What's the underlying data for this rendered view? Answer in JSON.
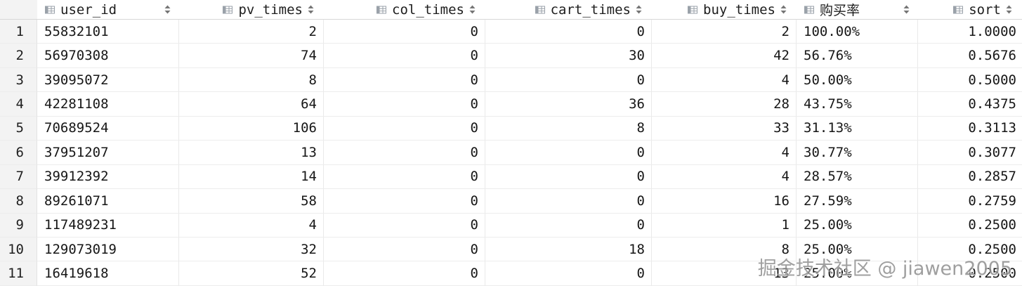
{
  "header": {
    "columns": [
      {
        "label": "user_id"
      },
      {
        "label": "pv_times"
      },
      {
        "label": "col_times"
      },
      {
        "label": "cart_times"
      },
      {
        "label": "buy_times"
      },
      {
        "label": "购买率"
      },
      {
        "label": "sort"
      }
    ]
  },
  "rows": [
    {
      "num": "1",
      "cells": [
        "55832101",
        "2",
        "0",
        "0",
        "2",
        "100.00%",
        "1.0000"
      ]
    },
    {
      "num": "2",
      "cells": [
        "56970308",
        "74",
        "0",
        "30",
        "42",
        "56.76%",
        "0.5676"
      ]
    },
    {
      "num": "3",
      "cells": [
        "39095072",
        "8",
        "0",
        "0",
        "4",
        "50.00%",
        "0.5000"
      ]
    },
    {
      "num": "4",
      "cells": [
        "42281108",
        "64",
        "0",
        "36",
        "28",
        "43.75%",
        "0.4375"
      ]
    },
    {
      "num": "5",
      "cells": [
        "70689524",
        "106",
        "0",
        "8",
        "33",
        "31.13%",
        "0.3113"
      ]
    },
    {
      "num": "6",
      "cells": [
        "37951207",
        "13",
        "0",
        "0",
        "4",
        "30.77%",
        "0.3077"
      ]
    },
    {
      "num": "7",
      "cells": [
        "39912392",
        "14",
        "0",
        "0",
        "4",
        "28.57%",
        "0.2857"
      ]
    },
    {
      "num": "8",
      "cells": [
        "89261071",
        "58",
        "0",
        "0",
        "16",
        "27.59%",
        "0.2759"
      ]
    },
    {
      "num": "9",
      "cells": [
        "117489231",
        "4",
        "0",
        "0",
        "1",
        "25.00%",
        "0.2500"
      ]
    },
    {
      "num": "10",
      "cells": [
        "129073019",
        "32",
        "0",
        "18",
        "8",
        "25.00%",
        "0.2500"
      ]
    },
    {
      "num": "11",
      "cells": [
        "16419618",
        "52",
        "0",
        "0",
        "13",
        "25.00%",
        "0.2500"
      ]
    }
  ],
  "column_aligns": [
    "l",
    "r",
    "r",
    "r",
    "r",
    "l",
    "r"
  ],
  "watermark": {
    "text": "掘金技术社区 @ jiawen2005"
  },
  "colors": {
    "icon_gray": "#9AA1A9",
    "arrow_gray": "#757575",
    "gutter_bg": "#f3f3f3",
    "grid_line": "#eaeaea"
  }
}
